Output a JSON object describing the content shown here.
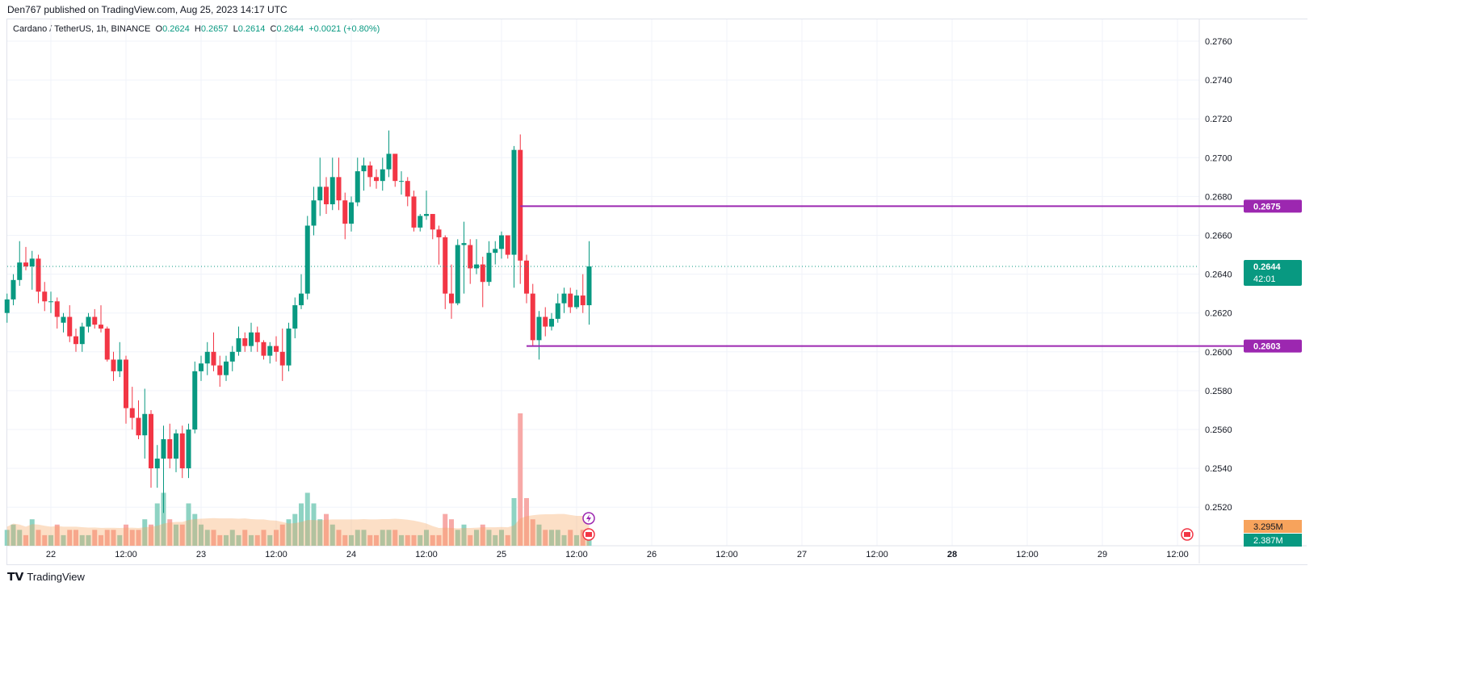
{
  "published": "Den767 published on TradingView.com, Aug 25, 2023 14:17 UTC",
  "legend": {
    "symbol": "Cardano / TetherUS, 1h, BINANCE",
    "o_label": "O",
    "o": "0.2624",
    "h_label": "H",
    "h": "0.2657",
    "l_label": "L",
    "l": "0.2614",
    "c_label": "C",
    "c": "0.2644",
    "change": "+0.0021 (+0.80%)"
  },
  "footer": {
    "brand": "TradingView"
  },
  "colors": {
    "up": "#089981",
    "down": "#f23645",
    "level": "#9c27b0",
    "volume_ma": "#f7a35c",
    "grid": "#f0f3fa"
  },
  "chart_data": {
    "type": "candlestick",
    "interval": "1h",
    "first_candle": "2023-08-21 17:00",
    "ylim": [
      0.25,
      0.277
    ],
    "y_ticks": [
      "0.2520",
      "0.2540",
      "0.2560",
      "0.2580",
      "0.2600",
      "0.2620",
      "0.2640",
      "0.2660",
      "0.2680",
      "0.2700",
      "0.2720",
      "0.2740",
      "0.2760"
    ],
    "x_ticks": [
      [
        "22",
        7
      ],
      [
        "12:00",
        19
      ],
      [
        "23",
        31
      ],
      [
        "12:00",
        43
      ],
      [
        "24",
        55
      ],
      [
        "12:00",
        67
      ],
      [
        "25",
        79
      ],
      [
        "12:00",
        91
      ],
      [
        "26",
        103
      ],
      [
        "12:00",
        115
      ],
      [
        "27",
        127
      ],
      [
        "12:00",
        139
      ],
      [
        "28",
        151
      ],
      [
        "12:00",
        163
      ],
      [
        "29",
        175
      ],
      [
        "12:00",
        187
      ]
    ],
    "ohlc": [
      [
        0.262,
        0.263,
        0.2615,
        0.2627
      ],
      [
        0.2627,
        0.264,
        0.2624,
        0.2637
      ],
      [
        0.2637,
        0.2657,
        0.2634,
        0.2646
      ],
      [
        0.2646,
        0.2654,
        0.2642,
        0.2644
      ],
      [
        0.2644,
        0.2652,
        0.2632,
        0.2648
      ],
      [
        0.2648,
        0.265,
        0.2625,
        0.2631
      ],
      [
        0.2631,
        0.2636,
        0.2621,
        0.2626
      ],
      [
        0.2626,
        0.2631,
        0.262,
        0.2626
      ],
      [
        0.2626,
        0.2628,
        0.2612,
        0.2618
      ],
      [
        0.2615,
        0.262,
        0.261,
        0.2618
      ],
      [
        0.2618,
        0.2624,
        0.2605,
        0.2608
      ],
      [
        0.2608,
        0.2612,
        0.26,
        0.2604
      ],
      [
        0.2604,
        0.2615,
        0.26,
        0.2613
      ],
      [
        0.2613,
        0.262,
        0.261,
        0.2618
      ],
      [
        0.2618,
        0.2622,
        0.2612,
        0.2614
      ],
      [
        0.2614,
        0.2624,
        0.261,
        0.2612
      ],
      [
        0.2612,
        0.2613,
        0.2595,
        0.2596
      ],
      [
        0.2596,
        0.26,
        0.2585,
        0.259
      ],
      [
        0.259,
        0.2605,
        0.2587,
        0.2596
      ],
      [
        0.2596,
        0.2598,
        0.2563,
        0.2571
      ],
      [
        0.2571,
        0.2582,
        0.256,
        0.2566
      ],
      [
        0.2566,
        0.2575,
        0.2555,
        0.2557
      ],
      [
        0.2557,
        0.2581,
        0.2545,
        0.2568
      ],
      [
        0.2568,
        0.257,
        0.253,
        0.254
      ],
      [
        0.254,
        0.2552,
        0.253,
        0.2545
      ],
      [
        0.2545,
        0.2562,
        0.2517,
        0.2555
      ],
      [
        0.2555,
        0.2563,
        0.254,
        0.2545
      ],
      [
        0.2545,
        0.256,
        0.2538,
        0.2558
      ],
      [
        0.2558,
        0.2562,
        0.2535,
        0.254
      ],
      [
        0.254,
        0.2563,
        0.2535,
        0.256
      ],
      [
        0.256,
        0.2595,
        0.2558,
        0.259
      ],
      [
        0.259,
        0.2598,
        0.2585,
        0.2594
      ],
      [
        0.2594,
        0.2605,
        0.2588,
        0.26
      ],
      [
        0.26,
        0.261,
        0.259,
        0.2593
      ],
      [
        0.2593,
        0.2598,
        0.2582,
        0.2588
      ],
      [
        0.2588,
        0.2598,
        0.2585,
        0.2595
      ],
      [
        0.2595,
        0.2603,
        0.259,
        0.26
      ],
      [
        0.26,
        0.2613,
        0.2598,
        0.2607
      ],
      [
        0.2607,
        0.261,
        0.26,
        0.2603
      ],
      [
        0.2603,
        0.2615,
        0.26,
        0.261
      ],
      [
        0.261,
        0.2613,
        0.26,
        0.2605
      ],
      [
        0.2605,
        0.2606,
        0.2596,
        0.2598
      ],
      [
        0.2598,
        0.2605,
        0.2594,
        0.2603
      ],
      [
        0.2603,
        0.2608,
        0.2595,
        0.26
      ],
      [
        0.26,
        0.2612,
        0.2585,
        0.2593
      ],
      [
        0.2593,
        0.2615,
        0.259,
        0.2612
      ],
      [
        0.2612,
        0.2628,
        0.2607,
        0.2624
      ],
      [
        0.2624,
        0.264,
        0.2622,
        0.263
      ],
      [
        0.263,
        0.267,
        0.2627,
        0.2665
      ],
      [
        0.2665,
        0.2685,
        0.266,
        0.2678
      ],
      [
        0.2678,
        0.27,
        0.267,
        0.2685
      ],
      [
        0.2685,
        0.269,
        0.2671,
        0.2676
      ],
      [
        0.2676,
        0.27,
        0.2673,
        0.269
      ],
      [
        0.269,
        0.27,
        0.2673,
        0.2678
      ],
      [
        0.2678,
        0.2682,
        0.2658,
        0.2666
      ],
      [
        0.2666,
        0.268,
        0.2662,
        0.2677
      ],
      [
        0.2677,
        0.27,
        0.2675,
        0.2693
      ],
      [
        0.2693,
        0.27,
        0.2683,
        0.2696
      ],
      [
        0.2696,
        0.2698,
        0.2685,
        0.269
      ],
      [
        0.269,
        0.2694,
        0.2684,
        0.2688
      ],
      [
        0.2688,
        0.27,
        0.2683,
        0.2694
      ],
      [
        0.2694,
        0.2714,
        0.269,
        0.2702
      ],
      [
        0.2702,
        0.2702,
        0.2685,
        0.2688
      ],
      [
        0.2688,
        0.2693,
        0.2681,
        0.2688
      ],
      [
        0.2688,
        0.269,
        0.2675,
        0.268
      ],
      [
        0.268,
        0.2683,
        0.2662,
        0.2664
      ],
      [
        0.2664,
        0.2671,
        0.2662,
        0.267
      ],
      [
        0.267,
        0.2683,
        0.2668,
        0.2671
      ],
      [
        0.2671,
        0.2671,
        0.2658,
        0.2663
      ],
      [
        0.2663,
        0.2665,
        0.2645,
        0.2659
      ],
      [
        0.2659,
        0.266,
        0.2622,
        0.263
      ],
      [
        0.263,
        0.2645,
        0.2617,
        0.2625
      ],
      [
        0.2625,
        0.2658,
        0.2624,
        0.2655
      ],
      [
        0.2655,
        0.2667,
        0.263,
        0.2656
      ],
      [
        0.2655,
        0.2658,
        0.2635,
        0.2643
      ],
      [
        0.2643,
        0.2658,
        0.264,
        0.2645
      ],
      [
        0.2645,
        0.2649,
        0.2623,
        0.2636
      ],
      [
        0.2636,
        0.2657,
        0.2634,
        0.2651
      ],
      [
        0.2651,
        0.2657,
        0.2645,
        0.2653
      ],
      [
        0.2653,
        0.2662,
        0.2648,
        0.266
      ],
      [
        0.266,
        0.266,
        0.2648,
        0.265
      ],
      [
        0.265,
        0.2706,
        0.2633,
        0.2704
      ],
      [
        0.2704,
        0.2712,
        0.2635,
        0.2647
      ],
      [
        0.2647,
        0.265,
        0.2625,
        0.263
      ],
      [
        0.263,
        0.2635,
        0.2603,
        0.2606
      ],
      [
        0.2606,
        0.2621,
        0.2596,
        0.2618
      ],
      [
        0.2618,
        0.2623,
        0.2608,
        0.2613
      ],
      [
        0.2613,
        0.262,
        0.2611,
        0.2617
      ],
      [
        0.2617,
        0.263,
        0.2615,
        0.2625
      ],
      [
        0.2625,
        0.2633,
        0.262,
        0.263
      ],
      [
        0.263,
        0.2633,
        0.262,
        0.2623
      ],
      [
        0.2623,
        0.2632,
        0.2622,
        0.2629
      ],
      [
        0.2629,
        0.264,
        0.262,
        0.2624
      ],
      [
        0.2624,
        0.2657,
        0.2614,
        0.2644
      ]
    ],
    "volume_millions": [
      3,
      4,
      3,
      2,
      5,
      3,
      2,
      2,
      4,
      2,
      3,
      3,
      2,
      2,
      3,
      2,
      3,
      3,
      2,
      4,
      3,
      3,
      5,
      4,
      8,
      10,
      5,
      4,
      4,
      8,
      6,
      4,
      3,
      3,
      2,
      2,
      3,
      2,
      3,
      2,
      2,
      3,
      2,
      3,
      4,
      5,
      6,
      8,
      10,
      8,
      5,
      6,
      4,
      3,
      2,
      2,
      3,
      3,
      2,
      2,
      3,
      3,
      3,
      2,
      2,
      2,
      2,
      3,
      2,
      2,
      6,
      5,
      3,
      4,
      2,
      3,
      4,
      3,
      2,
      3,
      2,
      9,
      25,
      9,
      5,
      4,
      3,
      3,
      3,
      2,
      3,
      2,
      3,
      2.387
    ],
    "volume_ma_label": "3.295M",
    "volume_label": "2.387M",
    "current_price": {
      "value": "0.2644",
      "countdown": "42:01"
    },
    "levels": [
      {
        "value": 0.2675,
        "label": "0.2675",
        "from_index": 82
      },
      {
        "value": 0.2603,
        "label": "0.2603",
        "from_index": 83
      }
    ]
  }
}
